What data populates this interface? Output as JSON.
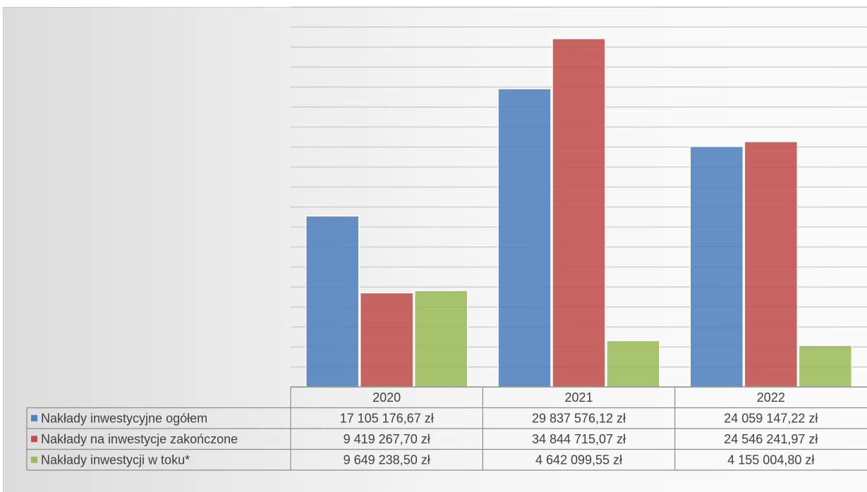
{
  "chart_data": {
    "type": "bar",
    "categories": [
      "2020",
      "2021",
      "2022"
    ],
    "series": [
      {
        "name": "Nakłady inwestycyjne ogółem",
        "color": "#4f81bd",
        "values": [
          17105176.67,
          29837576.12,
          24059147.22
        ],
        "labels": [
          "17 105 176,67 zł",
          "29 837 576,12 zł",
          "24 059 147,22 zł"
        ]
      },
      {
        "name": "Nakłady na inwestycje zakończone",
        "color": "#c0504d",
        "values": [
          9419267.7,
          34844715.07,
          24546241.97
        ],
        "labels": [
          "9 419 267,70 zł",
          "34 844 715,07 zł",
          "24 546 241,97 zł"
        ]
      },
      {
        "name": "Nakłady inwestycji w toku*",
        "color": "#9bbb59",
        "values": [
          9649238.5,
          4642099.55,
          4155004.8
        ],
        "labels": [
          "9 649 238,50 zł",
          "4 642 099,55 zł",
          "4 155 004,80 zł"
        ]
      }
    ],
    "ylim": [
      0,
      38000000
    ],
    "gridlines": 19,
    "grid": true,
    "data_table": true,
    "legend": "data-table"
  }
}
